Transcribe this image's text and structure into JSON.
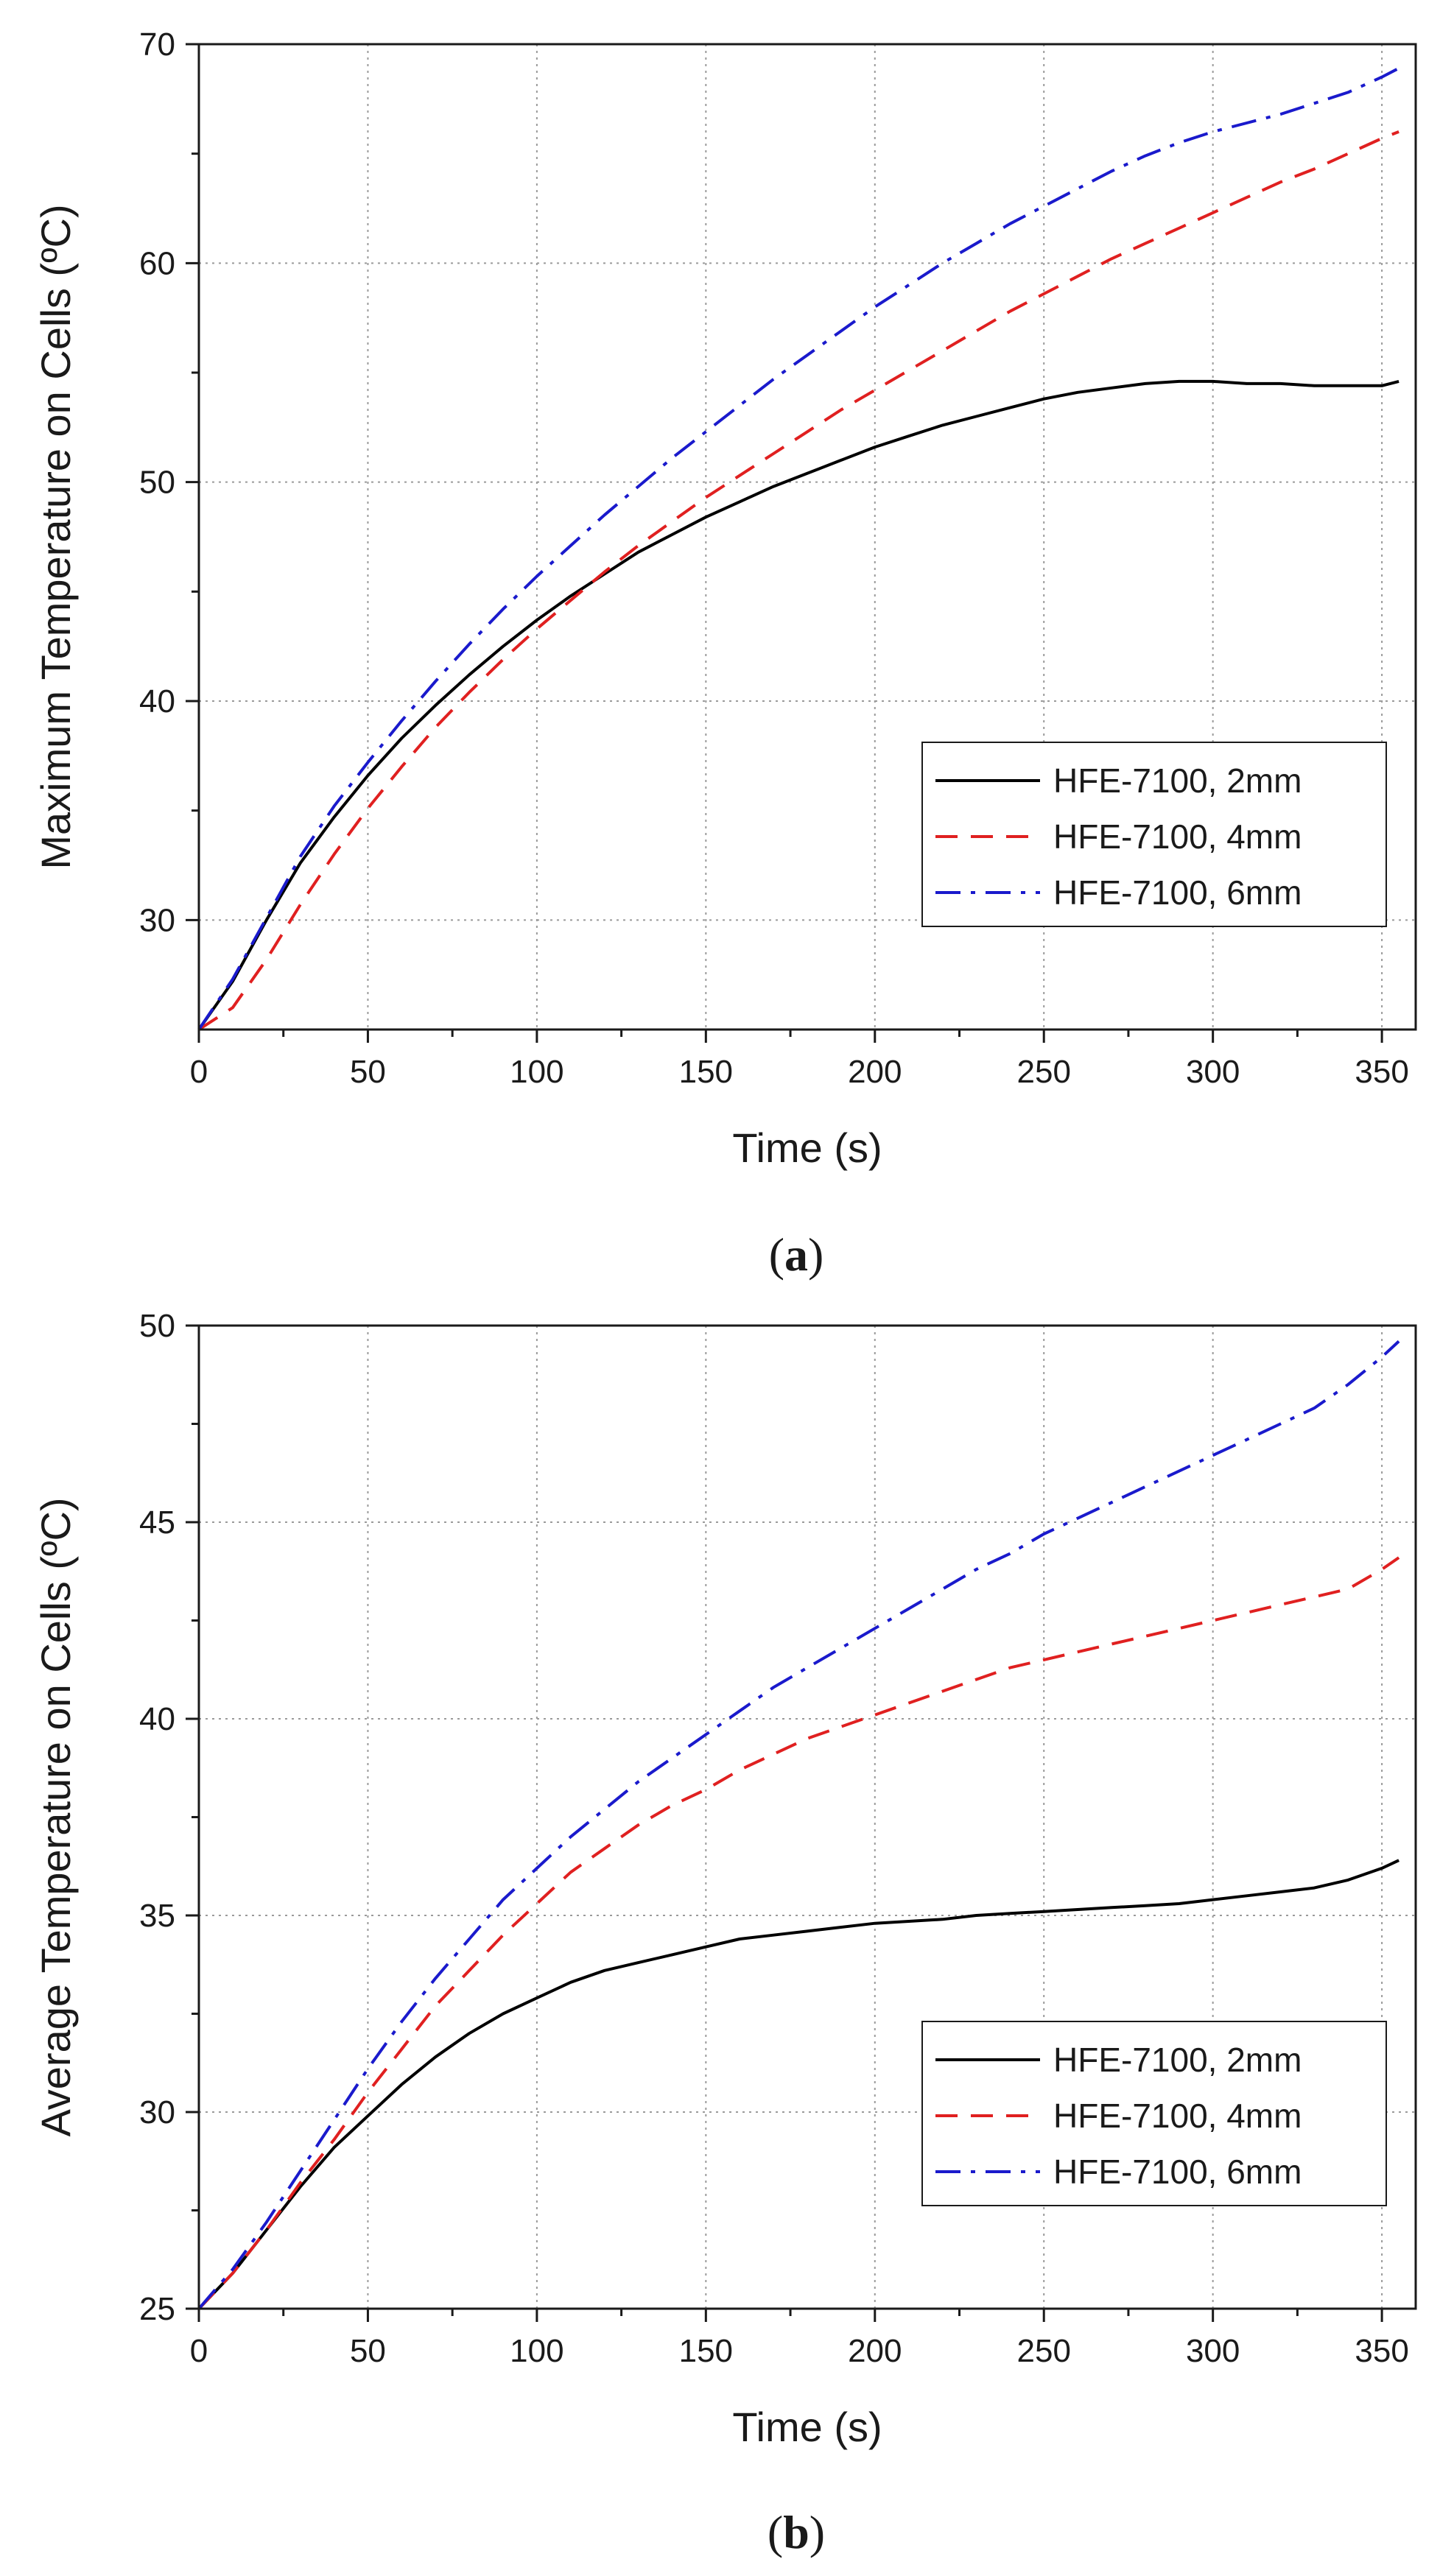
{
  "chart_data": [
    {
      "type": "line",
      "panel_label": "a",
      "xlabel": "Time (s)",
      "ylabel": "Maximum Temperature on Cells (ºC)",
      "xlim": [
        0,
        360
      ],
      "ylim": [
        25,
        70
      ],
      "xticks": [
        0,
        50,
        100,
        150,
        200,
        250,
        300,
        350
      ],
      "yticks": [
        30,
        40,
        50,
        60,
        70
      ],
      "grid": true,
      "legend_position": "lower-right",
      "x": [
        0,
        10,
        20,
        30,
        40,
        50,
        60,
        70,
        80,
        90,
        100,
        110,
        120,
        130,
        140,
        150,
        160,
        170,
        180,
        190,
        200,
        210,
        220,
        230,
        240,
        250,
        260,
        270,
        280,
        290,
        300,
        310,
        320,
        330,
        340,
        350,
        355
      ],
      "series": [
        {
          "name": "HFE-7100, 2mm",
          "color": "#000000",
          "dash": "solid",
          "values": [
            25.0,
            27.2,
            30.0,
            32.6,
            34.7,
            36.6,
            38.3,
            39.8,
            41.2,
            42.5,
            43.7,
            44.8,
            45.8,
            46.8,
            47.6,
            48.4,
            49.1,
            49.8,
            50.4,
            51.0,
            51.6,
            52.1,
            52.6,
            53.0,
            53.4,
            53.8,
            54.1,
            54.3,
            54.5,
            54.6,
            54.6,
            54.5,
            54.5,
            54.4,
            54.4,
            54.4,
            54.6
          ]
        },
        {
          "name": "HFE-7100, 4mm",
          "color": "#e02020",
          "dash": "dashed",
          "values": [
            25.0,
            26.0,
            28.2,
            30.7,
            33.0,
            35.1,
            37.0,
            38.8,
            40.4,
            41.9,
            43.3,
            44.6,
            45.9,
            47.1,
            48.2,
            49.3,
            50.3,
            51.3,
            52.3,
            53.3,
            54.2,
            55.1,
            56.0,
            56.9,
            57.8,
            58.6,
            59.4,
            60.2,
            60.9,
            61.6,
            62.3,
            63.0,
            63.7,
            64.3,
            65.0,
            65.7,
            66.0
          ]
        },
        {
          "name": "HFE-7100, 6mm",
          "color": "#1a1acc",
          "dash": "dashdot",
          "values": [
            25.0,
            27.3,
            30.1,
            32.9,
            35.2,
            37.2,
            39.1,
            40.9,
            42.6,
            44.2,
            45.7,
            47.1,
            48.5,
            49.8,
            51.1,
            52.3,
            53.5,
            54.7,
            55.8,
            56.9,
            58.0,
            59.0,
            60.0,
            60.9,
            61.8,
            62.6,
            63.4,
            64.2,
            64.9,
            65.5,
            66.0,
            66.4,
            66.8,
            67.3,
            67.8,
            68.5,
            68.9
          ]
        }
      ]
    },
    {
      "type": "line",
      "panel_label": "b",
      "xlabel": "Time (s)",
      "ylabel": "Average Temperature on Cells (ºC)",
      "xlim": [
        0,
        360
      ],
      "ylim": [
        25,
        50
      ],
      "xticks": [
        0,
        50,
        100,
        150,
        200,
        250,
        300,
        350
      ],
      "yticks": [
        25,
        30,
        35,
        40,
        45,
        50
      ],
      "grid": true,
      "legend_position": "lower-right",
      "x": [
        0,
        10,
        20,
        30,
        40,
        50,
        60,
        70,
        80,
        90,
        100,
        110,
        120,
        130,
        140,
        150,
        160,
        170,
        180,
        190,
        200,
        210,
        220,
        230,
        240,
        250,
        260,
        270,
        280,
        290,
        300,
        310,
        320,
        330,
        340,
        350,
        355
      ],
      "series": [
        {
          "name": "HFE-7100, 2mm",
          "color": "#000000",
          "dash": "solid",
          "values": [
            25.0,
            25.9,
            27.0,
            28.1,
            29.1,
            29.9,
            30.7,
            31.4,
            32.0,
            32.5,
            32.9,
            33.3,
            33.6,
            33.8,
            34.0,
            34.2,
            34.4,
            34.5,
            34.6,
            34.7,
            34.8,
            34.85,
            34.9,
            35.0,
            35.05,
            35.1,
            35.15,
            35.2,
            35.25,
            35.3,
            35.4,
            35.5,
            35.6,
            35.7,
            35.9,
            36.2,
            36.4
          ]
        },
        {
          "name": "HFE-7100, 4mm",
          "color": "#e02020",
          "dash": "dashed",
          "values": [
            25.0,
            25.9,
            27.0,
            28.2,
            29.3,
            30.5,
            31.6,
            32.7,
            33.6,
            34.5,
            35.3,
            36.1,
            36.7,
            37.3,
            37.8,
            38.2,
            38.7,
            39.1,
            39.5,
            39.8,
            40.1,
            40.4,
            40.7,
            41.0,
            41.3,
            41.5,
            41.7,
            41.9,
            42.1,
            42.3,
            42.5,
            42.7,
            42.9,
            43.1,
            43.3,
            43.8,
            44.1
          ]
        },
        {
          "name": "HFE-7100, 6mm",
          "color": "#1a1acc",
          "dash": "dashdot",
          "values": [
            25.0,
            26.0,
            27.2,
            28.5,
            29.8,
            31.1,
            32.3,
            33.4,
            34.4,
            35.4,
            36.2,
            37.0,
            37.7,
            38.4,
            39.0,
            39.6,
            40.2,
            40.8,
            41.3,
            41.8,
            42.3,
            42.8,
            43.3,
            43.8,
            44.2,
            44.7,
            45.1,
            45.5,
            45.9,
            46.3,
            46.7,
            47.1,
            47.5,
            47.9,
            48.5,
            49.2,
            49.6
          ]
        }
      ]
    }
  ]
}
